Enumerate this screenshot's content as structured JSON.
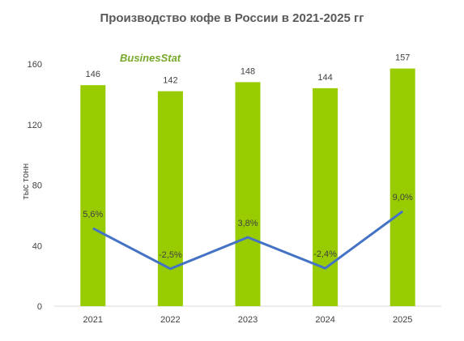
{
  "chart_data": {
    "type": "bar",
    "title": "Производство  кофе в России  в 2021-2025 гг",
    "ylabel": "тыс тонн",
    "xlabel": "",
    "categories": [
      "2021",
      "2022",
      "2023",
      "2024",
      "2025"
    ],
    "series": [
      {
        "values": [
          146,
          142,
          148,
          144,
          157
        ]
      }
    ],
    "growth_series": {
      "type": "line",
      "values": [
        5.6,
        -2.5,
        3.8,
        -2.4,
        9.0
      ],
      "labels": [
        "5,6%",
        "-2,5%",
        "3,8%",
        "-2,4%",
        "9,0%"
      ]
    },
    "bar_labels": [
      "146",
      "142",
      "148",
      "144",
      "157"
    ],
    "y_ticks": [
      "0",
      "40",
      "80",
      "120",
      "160"
    ],
    "ylim": [
      0,
      170
    ],
    "grid": false,
    "colors": {
      "bar": "#99CC00",
      "line": "#4472C4",
      "text": "#404040"
    }
  },
  "watermark": {
    "text": "BusinesStat"
  }
}
